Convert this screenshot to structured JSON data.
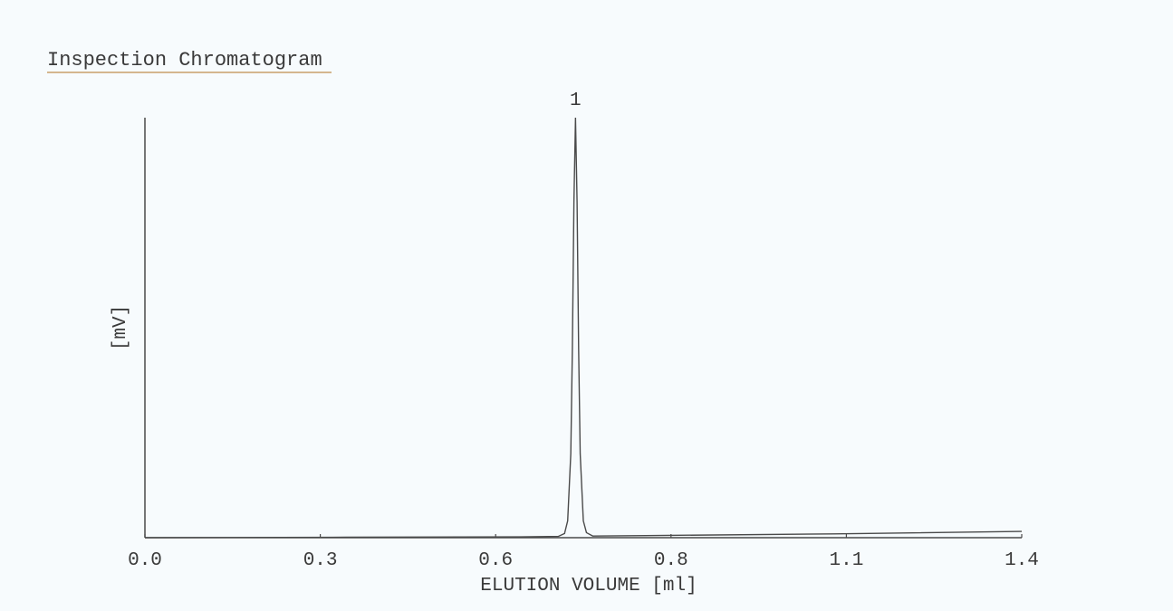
{
  "chart_data": {
    "type": "line",
    "title": "Inspection Chromatogram",
    "xlabel": "ELUTION VOLUME [ml]",
    "ylabel": "[mV]",
    "x_ticks": [
      "0.0",
      "0.3",
      "0.6",
      "0.8",
      "1.1",
      "1.4"
    ],
    "xlim": [
      0.0,
      1.4
    ],
    "ylim": [
      0,
      100
    ],
    "grid": false,
    "legend": "none",
    "line_color": "#4a4a4a",
    "title_underline_color": "#c8a06a",
    "series": [
      {
        "x": [
          0.0,
          0.3,
          0.6,
          0.66,
          0.67,
          0.675,
          0.68,
          0.6825,
          0.685,
          0.6875,
          0.69,
          0.6925,
          0.695,
          0.7,
          0.705,
          0.715,
          0.8,
          1.1,
          1.4
        ],
        "y": [
          0.0,
          0.1,
          0.2,
          0.3,
          1.0,
          4.0,
          20.0,
          45.0,
          80.0,
          100.0,
          80.0,
          45.0,
          20.0,
          4.0,
          1.2,
          0.4,
          0.5,
          0.9,
          1.5
        ]
      }
    ],
    "annotations": [
      {
        "text": "1",
        "x": 0.6875,
        "y": 100
      }
    ]
  }
}
